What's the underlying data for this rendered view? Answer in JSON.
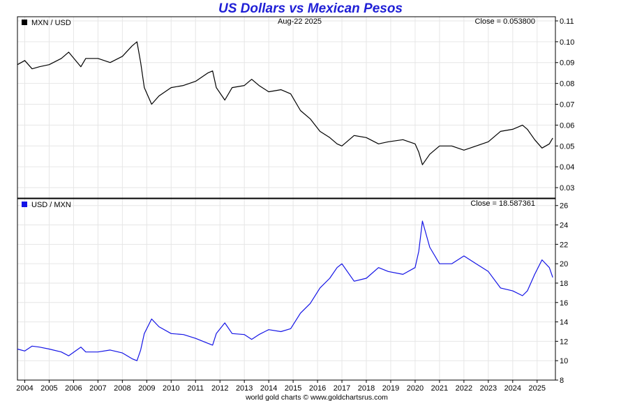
{
  "title": "US Dollars vs Mexican Pesos",
  "date_label": "Aug-22  2025",
  "footer": "world gold charts © www.goldchartsrus.com",
  "chart_data": [
    {
      "type": "line",
      "legend": "MXN / USD",
      "close_label": "Close = 0.053800",
      "color": "#000000",
      "grid": true,
      "ylim": [
        0.025,
        0.112
      ],
      "y_ticks": [
        "0.11",
        "0.10",
        "0.09",
        "0.08",
        "0.07",
        "0.06",
        "0.05",
        "0.04",
        "0.03"
      ],
      "y_tick_values": [
        0.11,
        0.1,
        0.09,
        0.08,
        0.07,
        0.06,
        0.05,
        0.04,
        0.03
      ],
      "x_ticks": [
        "2004",
        "2005",
        "2006",
        "2007",
        "2008",
        "2009",
        "2010",
        "2011",
        "2012",
        "2013",
        "2014",
        "2015",
        "2016",
        "2017",
        "2018",
        "2019",
        "2020",
        "2021",
        "2022",
        "2023",
        "2024",
        "2025"
      ],
      "xlim": [
        2003.7,
        2025.75
      ],
      "x": [
        2003.7,
        2004.0,
        2004.3,
        2004.6,
        2005.0,
        2005.5,
        2005.8,
        2006.3,
        2006.5,
        2007.0,
        2007.5,
        2008.0,
        2008.4,
        2008.6,
        2008.75,
        2008.9,
        2009.2,
        2009.5,
        2010.0,
        2010.5,
        2011.0,
        2011.5,
        2011.7,
        2011.85,
        2012.2,
        2012.5,
        2013.0,
        2013.3,
        2013.6,
        2014.0,
        2014.5,
        2014.9,
        2015.3,
        2015.7,
        2016.1,
        2016.5,
        2016.8,
        2017.0,
        2017.5,
        2018.0,
        2018.5,
        2018.9,
        2019.5,
        2020.0,
        2020.15,
        2020.3,
        2020.6,
        2021.0,
        2021.5,
        2022.0,
        2022.5,
        2023.0,
        2023.5,
        2024.0,
        2024.4,
        2024.6,
        2024.9,
        2025.2,
        2025.5,
        2025.64
      ],
      "values": [
        0.089,
        0.091,
        0.087,
        0.088,
        0.089,
        0.092,
        0.095,
        0.088,
        0.092,
        0.092,
        0.09,
        0.093,
        0.098,
        0.1,
        0.09,
        0.078,
        0.07,
        0.074,
        0.078,
        0.079,
        0.081,
        0.085,
        0.086,
        0.078,
        0.072,
        0.078,
        0.079,
        0.082,
        0.079,
        0.076,
        0.077,
        0.075,
        0.067,
        0.063,
        0.057,
        0.054,
        0.051,
        0.05,
        0.055,
        0.054,
        0.051,
        0.052,
        0.053,
        0.051,
        0.047,
        0.041,
        0.046,
        0.05,
        0.05,
        0.048,
        0.05,
        0.052,
        0.057,
        0.058,
        0.06,
        0.058,
        0.053,
        0.049,
        0.051,
        0.0538
      ]
    },
    {
      "type": "line",
      "legend": "USD / MXN",
      "close_label": "Close = 18.587361",
      "color": "#1414e6",
      "grid": true,
      "ylim": [
        8,
        26.7
      ],
      "y_ticks": [
        "26",
        "24",
        "22",
        "20",
        "18",
        "16",
        "14",
        "12",
        "10",
        "8"
      ],
      "y_tick_values": [
        26,
        24,
        22,
        20,
        18,
        16,
        14,
        12,
        10,
        8
      ],
      "x_ticks": [
        "2004",
        "2005",
        "2006",
        "2007",
        "2008",
        "2009",
        "2010",
        "2011",
        "2012",
        "2013",
        "2014",
        "2015",
        "2016",
        "2017",
        "2018",
        "2019",
        "2020",
        "2021",
        "2022",
        "2023",
        "2024",
        "2025"
      ],
      "xlim": [
        2003.7,
        2025.75
      ],
      "x": [
        2003.7,
        2004.0,
        2004.3,
        2004.6,
        2005.0,
        2005.5,
        2005.8,
        2006.3,
        2006.5,
        2007.0,
        2007.5,
        2008.0,
        2008.4,
        2008.6,
        2008.75,
        2008.9,
        2009.2,
        2009.5,
        2010.0,
        2010.5,
        2011.0,
        2011.5,
        2011.7,
        2011.85,
        2012.2,
        2012.5,
        2013.0,
        2013.3,
        2013.6,
        2014.0,
        2014.5,
        2014.9,
        2015.3,
        2015.7,
        2016.1,
        2016.5,
        2016.8,
        2017.0,
        2017.5,
        2018.0,
        2018.5,
        2018.9,
        2019.5,
        2020.0,
        2020.15,
        2020.3,
        2020.6,
        2021.0,
        2021.5,
        2022.0,
        2022.5,
        2023.0,
        2023.5,
        2024.0,
        2024.4,
        2024.6,
        2024.9,
        2025.2,
        2025.5,
        2025.64
      ],
      "values": [
        11.2,
        11.0,
        11.5,
        11.4,
        11.2,
        10.9,
        10.5,
        11.4,
        10.9,
        10.9,
        11.1,
        10.8,
        10.2,
        10.0,
        11.1,
        12.8,
        14.3,
        13.5,
        12.8,
        12.7,
        12.3,
        11.8,
        11.6,
        12.8,
        13.9,
        12.8,
        12.7,
        12.2,
        12.7,
        13.2,
        13.0,
        13.3,
        14.9,
        15.9,
        17.5,
        18.5,
        19.6,
        20.0,
        18.2,
        18.5,
        19.6,
        19.2,
        18.9,
        19.6,
        21.3,
        24.4,
        21.7,
        20.0,
        20.0,
        20.8,
        20.0,
        19.2,
        17.5,
        17.2,
        16.7,
        17.2,
        18.9,
        20.4,
        19.6,
        18.587361
      ]
    }
  ]
}
